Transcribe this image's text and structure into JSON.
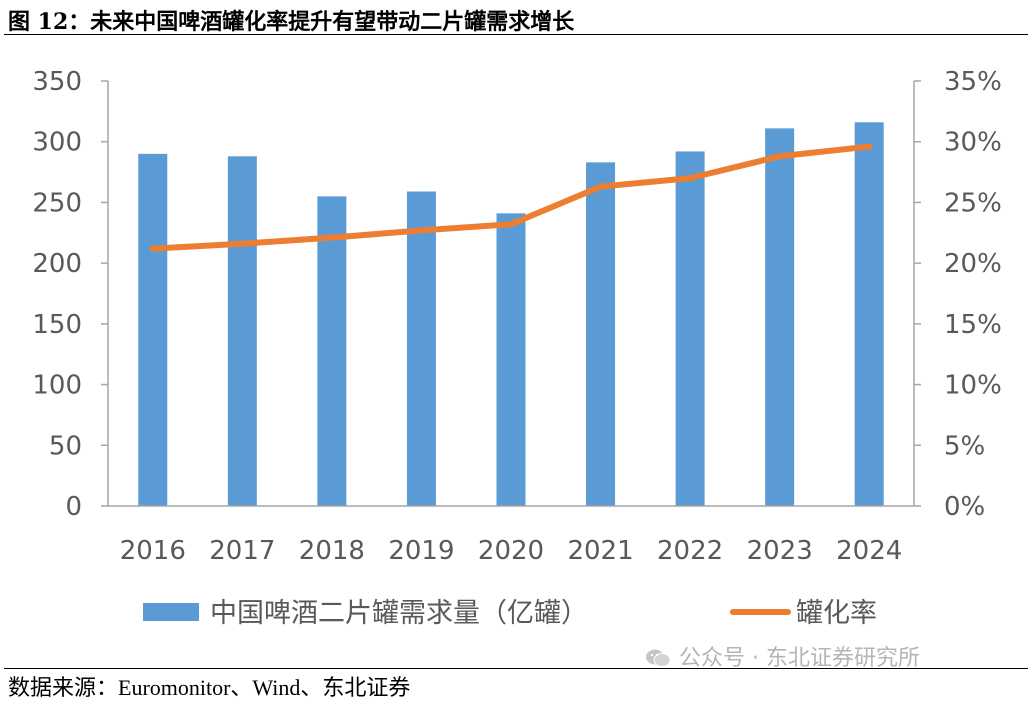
{
  "caption": "图 12：未来中国啤酒罐化率提升有望带动二片罐需求增长",
  "source": "数据来源：Euromonitor、Wind、东北证券",
  "watermark": "公众号 · 东北证券研究所",
  "chart_data": {
    "type": "bar+line",
    "categories": [
      "2016",
      "2017",
      "2018",
      "2019",
      "2020",
      "2021",
      "2022",
      "2023",
      "2024"
    ],
    "series": [
      {
        "name": "中国啤酒二片罐需求量（亿罐）",
        "type": "bar",
        "axis": "left",
        "color": "#5b9bd5",
        "values": [
          290,
          288,
          255,
          259,
          241,
          283,
          292,
          311,
          316
        ]
      },
      {
        "name": "罐化率",
        "type": "line",
        "axis": "right",
        "color": "#ed7d31",
        "values": [
          0.212,
          0.216,
          0.221,
          0.227,
          0.232,
          0.263,
          0.27,
          0.288,
          0.296
        ]
      }
    ],
    "y_left": {
      "min": 0,
      "max": 350,
      "ticks": [
        0,
        50,
        100,
        150,
        200,
        250,
        300,
        350
      ],
      "tick_labels": [
        "0",
        "50",
        "100",
        "150",
        "200",
        "250",
        "300",
        "350"
      ]
    },
    "y_right": {
      "min": 0,
      "max": 0.35,
      "ticks": [
        0,
        0.05,
        0.1,
        0.15,
        0.2,
        0.25,
        0.3,
        0.35
      ],
      "tick_labels": [
        "0%",
        "5%",
        "10%",
        "15%",
        "20%",
        "25%",
        "30%",
        "35%"
      ]
    },
    "legend": {
      "position": "bottom"
    },
    "grid": false
  }
}
